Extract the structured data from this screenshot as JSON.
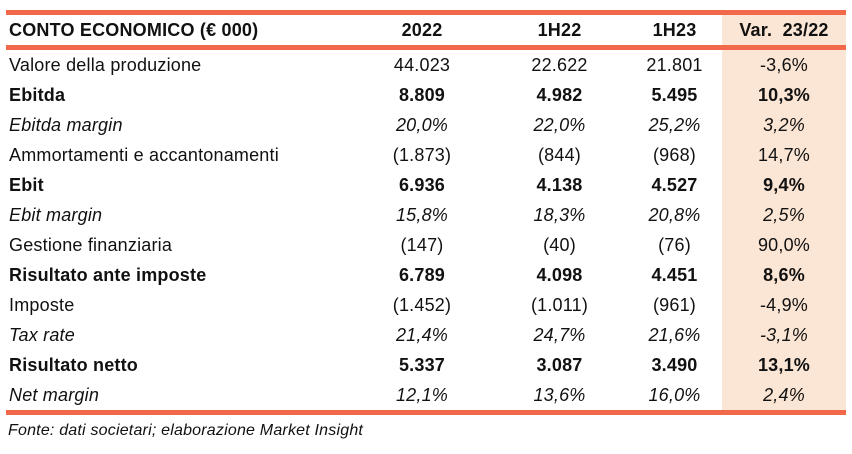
{
  "chart_data": {
    "type": "table",
    "title": "CONTO ECONOMICO (€ 000)",
    "columns": [
      "2022",
      "1H22",
      "1H23",
      "Var.  23/22"
    ],
    "rows": [
      {
        "label": "Valore della produzione",
        "style": "normal",
        "values": [
          "44.023",
          "22.622",
          "21.801",
          "-3,6%"
        ]
      },
      {
        "label": "Ebitda",
        "style": "bold",
        "values": [
          "8.809",
          "4.982",
          "5.495",
          "10,3%"
        ]
      },
      {
        "label": "Ebitda margin",
        "style": "italic",
        "values": [
          "20,0%",
          "22,0%",
          "25,2%",
          "3,2%"
        ]
      },
      {
        "label": "Ammortamenti e accantonamenti",
        "style": "normal",
        "values": [
          "(1.873)",
          "(844)",
          "(968)",
          "14,7%"
        ]
      },
      {
        "label": "Ebit",
        "style": "bold",
        "values": [
          "6.936",
          "4.138",
          "4.527",
          "9,4%"
        ]
      },
      {
        "label": "Ebit margin",
        "style": "italic",
        "values": [
          "15,8%",
          "18,3%",
          "20,8%",
          "2,5%"
        ]
      },
      {
        "label": "Gestione finanziaria",
        "style": "normal",
        "values": [
          "(147)",
          "(40)",
          "(76)",
          "90,0%"
        ]
      },
      {
        "label": "Risultato ante imposte",
        "style": "bold",
        "values": [
          "6.789",
          "4.098",
          "4.451",
          "8,6%"
        ]
      },
      {
        "label": "Imposte",
        "style": "normal",
        "values": [
          "(1.452)",
          "(1.011)",
          "(961)",
          "-4,9%"
        ]
      },
      {
        "label": "Tax rate",
        "style": "italic",
        "values": [
          "21,4%",
          "24,7%",
          "21,6%",
          "-3,1%"
        ]
      },
      {
        "label": "Risultato netto",
        "style": "bold",
        "values": [
          "5.337",
          "3.087",
          "3.490",
          "13,1%"
        ]
      },
      {
        "label": "Net margin",
        "style": "italic",
        "values": [
          "12,1%",
          "13,6%",
          "16,0%",
          "2,4%"
        ]
      }
    ],
    "source_note": "Fonte: dati societari; elaborazione Market Insight"
  },
  "colors": {
    "accent_orange": "#F2684B",
    "var_column_bg": "#FBE5D4",
    "text": "#111111"
  }
}
